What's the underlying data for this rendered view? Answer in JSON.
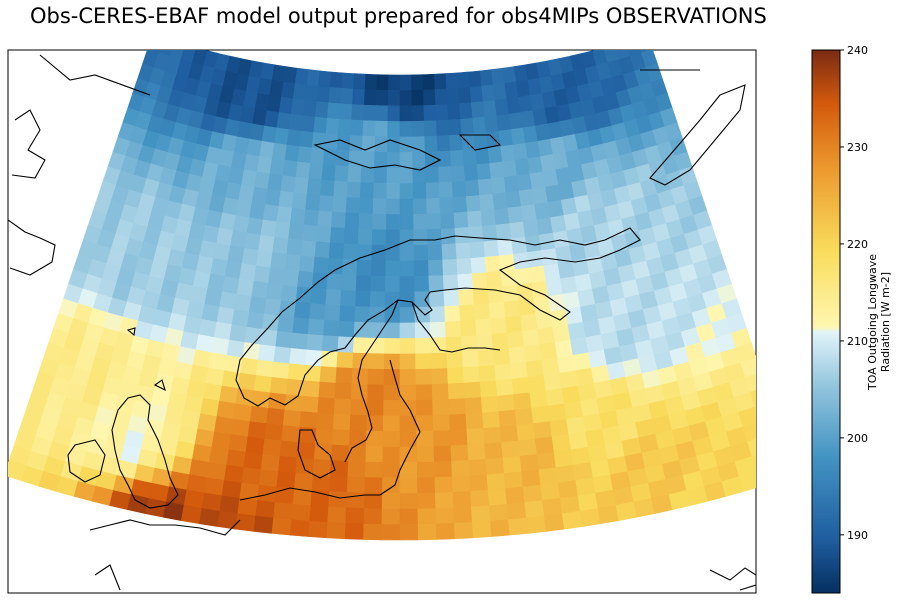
{
  "chart_data": {
    "type": "heatmap",
    "title": "Obs-CERES-EBAF model output prepared for obs4MIPs OBSERVATIONS",
    "projection": "Lambert conformal conic",
    "region": "Northern Europe / Scandinavia",
    "colorbar": {
      "label_line1": "TOA Outgoing Longwave",
      "label_line2": "Radiation [W m-2]",
      "min": 184,
      "max": 240,
      "ticks": [
        190,
        200,
        210,
        220,
        230,
        240
      ],
      "colormap": "blue-white-yellow-orange-brown (diverging)"
    },
    "value_field_description": "Low values (~185-200) over Arctic Ocean / Svalbard and Scandinavian mountains; values near 210 over Norwegian Sea; high values (225-240) over Baltic, Germany, Poland and North Sea lowlands",
    "sample_values": {
      "arctic_north_edge": 186,
      "svalbard": 200,
      "norwegian_sea": 205,
      "scandinavian_mountains": 197,
      "finland": 216,
      "uk_ireland": 212,
      "baltic_sea": 230,
      "germany_poland": 233,
      "southwest_corner": 238,
      "southeast_corner": 222
    }
  }
}
